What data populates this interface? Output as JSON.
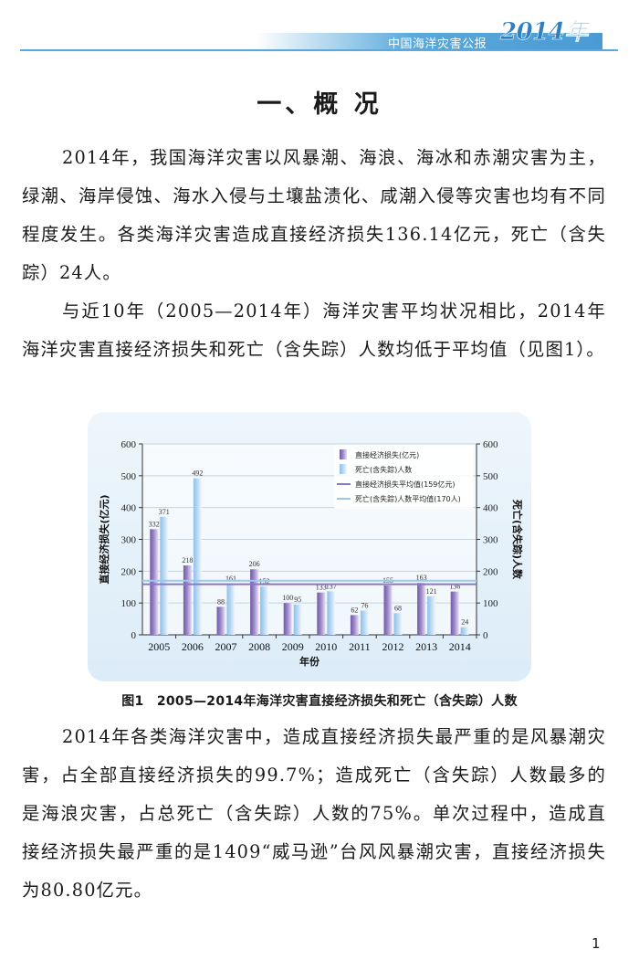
{
  "header": {
    "title": "中国海洋灾害公报",
    "year": "2014年"
  },
  "section_title": "一、概 况",
  "paragraphs": [
    "2014年，我国海洋灾害以风暴潮、海浪、海冰和赤潮灾害为主，绿潮、海岸侵蚀、海水入侵与土壤盐渍化、咸潮入侵等灾害也均有不同程度发生。各类海洋灾害造成直接经济损失136.14亿元，死亡（含失踪）24人。",
    "与近10年（2005—2014年）海洋灾害平均状况相比，2014年海洋灾害直接经济损失和死亡（含失踪）人数均低于平均值（见图1）。",
    "2014年各类海洋灾害中，造成直接经济损失最严重的是风暴潮灾害，占全部直接经济损失的99.7%；造成死亡（含失踪）人数最多的是海浪灾害，占总死亡（含失踪）人数的75%。单次过程中，造成直接经济损失最严重的是1409“威马逊”台风风暴潮灾害，直接经济损失为80.80亿元。"
  ],
  "figure_caption": "图1　2005—2014年海洋灾害直接经济损失和死亡（含失踪）人数",
  "page_number": "1",
  "colors": {
    "accent": "#5aa9dc",
    "loss_bar": "#9b86c6",
    "death_bar": "#bcdaf3",
    "loss_avg": "#8a78c4",
    "death_avg": "#9cc8ee"
  },
  "chart_data": {
    "type": "bar",
    "categories": [
      "2005",
      "2006",
      "2007",
      "2008",
      "2009",
      "2010",
      "2011",
      "2012",
      "2013",
      "2014"
    ],
    "series": [
      {
        "name": "直接经济损失(亿元)",
        "axis": "left",
        "values": [
          332,
          218,
          88,
          206,
          100,
          133,
          62,
          155,
          163,
          136
        ]
      },
      {
        "name": "死亡(含失踪)人数",
        "axis": "right",
        "values": [
          371,
          492,
          161,
          152,
          95,
          137,
          76,
          68,
          121,
          24
        ]
      }
    ],
    "reference_lines": [
      {
        "name": "直接经济损失平均值(159亿元)",
        "axis": "left",
        "value": 159
      },
      {
        "name": "死亡(含失踪)人数平均值(170人)",
        "axis": "right",
        "value": 170
      }
    ],
    "xlabel": "年份",
    "ylabel": "直接经济损失(亿元)",
    "ylabel_right": "死亡(含失踪)人数",
    "ylim": [
      0,
      600
    ],
    "ylim_right": [
      0,
      600
    ],
    "yticks": [
      "0",
      "100",
      "200",
      "300",
      "400",
      "500",
      "600"
    ],
    "grid": true,
    "legend_position": "top-right"
  }
}
